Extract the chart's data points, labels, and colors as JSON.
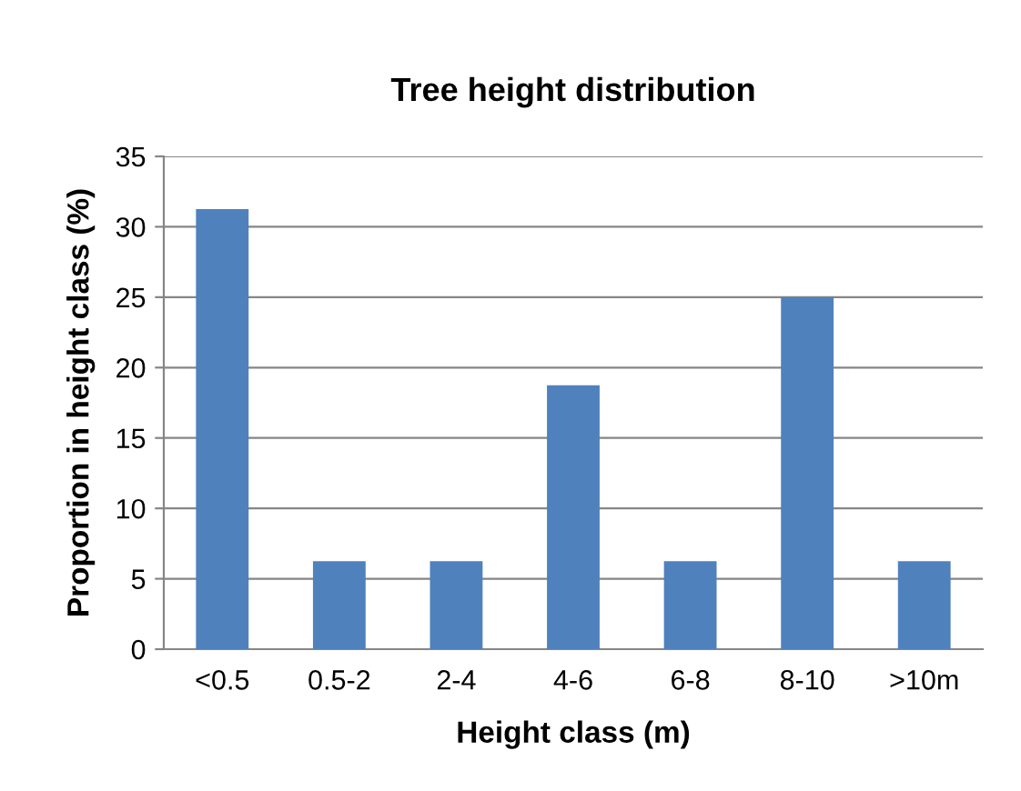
{
  "chart_data": {
    "type": "bar",
    "title": "Tree height distribution",
    "xlabel": "Height class (m)",
    "ylabel": "Proportion in height class (%)",
    "categories": [
      "<0.5",
      "0.5-2",
      "2-4",
      "4-6",
      "6-8",
      "8-10",
      ">10m"
    ],
    "values": [
      31.25,
      6.25,
      6.25,
      18.75,
      6.25,
      25,
      6.25
    ],
    "color": "#4f81bd",
    "ylim": [
      0,
      35
    ],
    "yticks": [
      0,
      5,
      10,
      15,
      20,
      25,
      30,
      35
    ],
    "grid": "y",
    "legend": false
  }
}
